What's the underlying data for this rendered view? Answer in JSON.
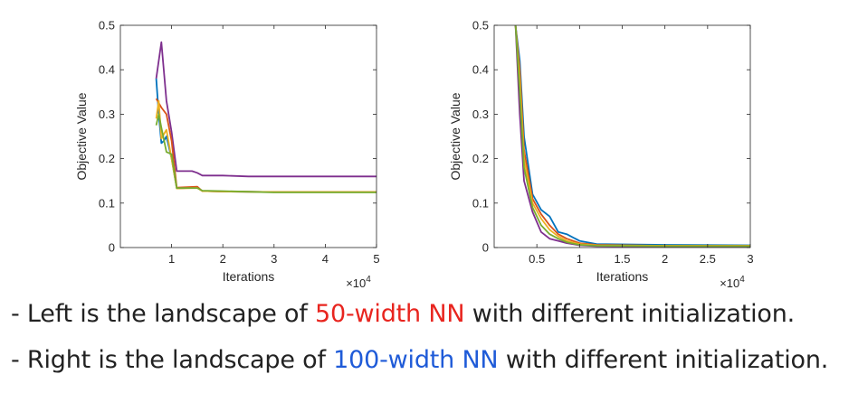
{
  "colors": {
    "blue": "#0072bd",
    "orange": "#d95319",
    "yellow": "#edb120",
    "purple": "#7e2f8e",
    "green": "#77ac30",
    "red_text": "#e8251f",
    "blue_text": "#1f5bd8"
  },
  "chart_data": [
    {
      "type": "line",
      "title": "",
      "xlabel": "Iterations",
      "ylabel": "Objective Value",
      "x_multiplier": "×10^4",
      "xlim": [
        0,
        5
      ],
      "ylim": [
        0,
        0.5
      ],
      "xticks": [
        1,
        2,
        3,
        4,
        5
      ],
      "yticks": [
        0,
        0.1,
        0.2,
        0.3,
        0.4,
        0.5
      ],
      "grid": false,
      "series": [
        {
          "color": "purple",
          "x": [
            0.7,
            0.8,
            0.9,
            1.0,
            1.1,
            1.4,
            1.5,
            1.6,
            2.0,
            2.5,
            3.0,
            4.0,
            5.0
          ],
          "y": [
            0.38,
            0.462,
            0.33,
            0.26,
            0.172,
            0.172,
            0.168,
            0.162,
            0.162,
            0.16,
            0.16,
            0.16,
            0.16
          ]
        },
        {
          "color": "blue",
          "x": [
            0.7,
            0.75,
            0.8,
            0.85,
            0.9,
            1.0,
            1.1,
            1.5,
            1.6,
            2.0,
            3.0,
            5.0
          ],
          "y": [
            0.38,
            0.3,
            0.235,
            0.24,
            0.25,
            0.2,
            0.133,
            0.135,
            0.127,
            0.126,
            0.125,
            0.125
          ]
        },
        {
          "color": "orange",
          "x": [
            0.7,
            0.8,
            0.9,
            1.0,
            1.1,
            1.5,
            1.6,
            2.0,
            3.0,
            5.0
          ],
          "y": [
            0.335,
            0.315,
            0.3,
            0.24,
            0.135,
            0.137,
            0.127,
            0.126,
            0.125,
            0.125
          ]
        },
        {
          "color": "yellow",
          "x": [
            0.7,
            0.75,
            0.8,
            0.85,
            0.9,
            1.0,
            1.1,
            1.5,
            1.6,
            2.0,
            3.0,
            5.0
          ],
          "y": [
            0.29,
            0.33,
            0.245,
            0.255,
            0.265,
            0.2,
            0.133,
            0.134,
            0.127,
            0.126,
            0.125,
            0.125
          ]
        },
        {
          "color": "green",
          "x": [
            0.7,
            0.75,
            0.8,
            0.9,
            1.0,
            1.1,
            1.5,
            1.6,
            2.0,
            3.0,
            5.0
          ],
          "y": [
            0.275,
            0.3,
            0.27,
            0.215,
            0.21,
            0.134,
            0.134,
            0.128,
            0.127,
            0.124,
            0.124
          ]
        }
      ]
    },
    {
      "type": "line",
      "title": "",
      "xlabel": "Iterations",
      "ylabel": "Objective Value",
      "x_multiplier": "×10^4",
      "xlim": [
        0,
        3
      ],
      "ylim": [
        0,
        0.5
      ],
      "xticks": [
        0.5,
        1,
        1.5,
        2,
        2.5,
        3
      ],
      "yticks": [
        0,
        0.1,
        0.2,
        0.3,
        0.4,
        0.5
      ],
      "grid": false,
      "series": [
        {
          "color": "blue",
          "x": [
            0.25,
            0.3,
            0.35,
            0.45,
            0.55,
            0.65,
            0.75,
            0.85,
            1.0,
            1.2,
            2.0,
            3.0
          ],
          "y": [
            0.5,
            0.42,
            0.25,
            0.12,
            0.085,
            0.07,
            0.035,
            0.03,
            0.015,
            0.008,
            0.006,
            0.005
          ]
        },
        {
          "color": "orange",
          "x": [
            0.25,
            0.3,
            0.35,
            0.45,
            0.55,
            0.65,
            0.75,
            0.85,
            1.0,
            1.2,
            2.0,
            3.0
          ],
          "y": [
            0.5,
            0.4,
            0.22,
            0.11,
            0.075,
            0.05,
            0.03,
            0.02,
            0.01,
            0.006,
            0.004,
            0.004
          ]
        },
        {
          "color": "yellow",
          "x": [
            0.25,
            0.3,
            0.35,
            0.45,
            0.55,
            0.65,
            0.75,
            0.85,
            1.0,
            1.2,
            2.0,
            3.0
          ],
          "y": [
            0.5,
            0.38,
            0.2,
            0.1,
            0.065,
            0.04,
            0.025,
            0.015,
            0.008,
            0.005,
            0.004,
            0.004
          ]
        },
        {
          "color": "purple",
          "x": [
            0.25,
            0.3,
            0.35,
            0.45,
            0.55,
            0.65,
            0.75,
            0.85,
            1.0,
            1.2,
            2.0,
            3.0
          ],
          "y": [
            0.5,
            0.3,
            0.15,
            0.08,
            0.035,
            0.02,
            0.015,
            0.01,
            0.005,
            0.003,
            0.002,
            0.002
          ]
        },
        {
          "color": "green",
          "x": [
            0.25,
            0.3,
            0.35,
            0.45,
            0.55,
            0.65,
            0.75,
            0.85,
            1.0,
            1.2,
            2.0,
            3.0
          ],
          "y": [
            0.5,
            0.35,
            0.18,
            0.09,
            0.05,
            0.03,
            0.02,
            0.012,
            0.006,
            0.004,
            0.003,
            0.003
          ]
        }
      ]
    }
  ],
  "text": {
    "line1": {
      "prefix": "- Left is the landscape of ",
      "highlight": "50-width NN",
      "suffix": " with different initialization."
    },
    "line2": {
      "prefix": "- Right is the landscape of ",
      "highlight": "100-width NN",
      "suffix": " with different initialization."
    }
  }
}
